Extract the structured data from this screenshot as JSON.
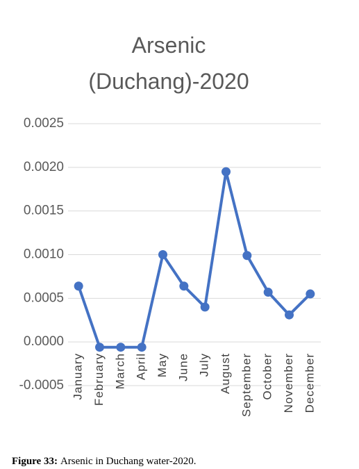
{
  "chart_data": {
    "type": "line",
    "title": [
      "Arsenic",
      "(Duchang)-2020"
    ],
    "categories": [
      "January",
      "February",
      "March",
      "April",
      "May",
      "June",
      "July",
      "August",
      "September",
      "October",
      "November",
      "December"
    ],
    "series": [
      {
        "name": "Arsenic",
        "color": "#4472c4",
        "values": [
          0.00064,
          -6e-05,
          -6e-05,
          -6e-05,
          0.001,
          0.00064,
          0.0004,
          0.00195,
          0.00099,
          0.00057,
          0.00031,
          0.00055
        ]
      }
    ],
    "ylim": [
      -0.0005,
      0.0025
    ],
    "yticks": [
      {
        "value": -0.0005,
        "label": "-0.0005"
      },
      {
        "value": 0,
        "label": "0.0000"
      },
      {
        "value": 0.0005,
        "label": "0.0005"
      },
      {
        "value": 0.001,
        "label": "0.0010"
      },
      {
        "value": 0.0015,
        "label": "0.0015"
      },
      {
        "value": 0.002,
        "label": "0.0020"
      },
      {
        "value": 0.0025,
        "label": "0.0025"
      }
    ],
    "grid": true,
    "caption": {
      "label": "Figure 33:",
      "text": "Arsenic in Duchang water-2020."
    }
  }
}
